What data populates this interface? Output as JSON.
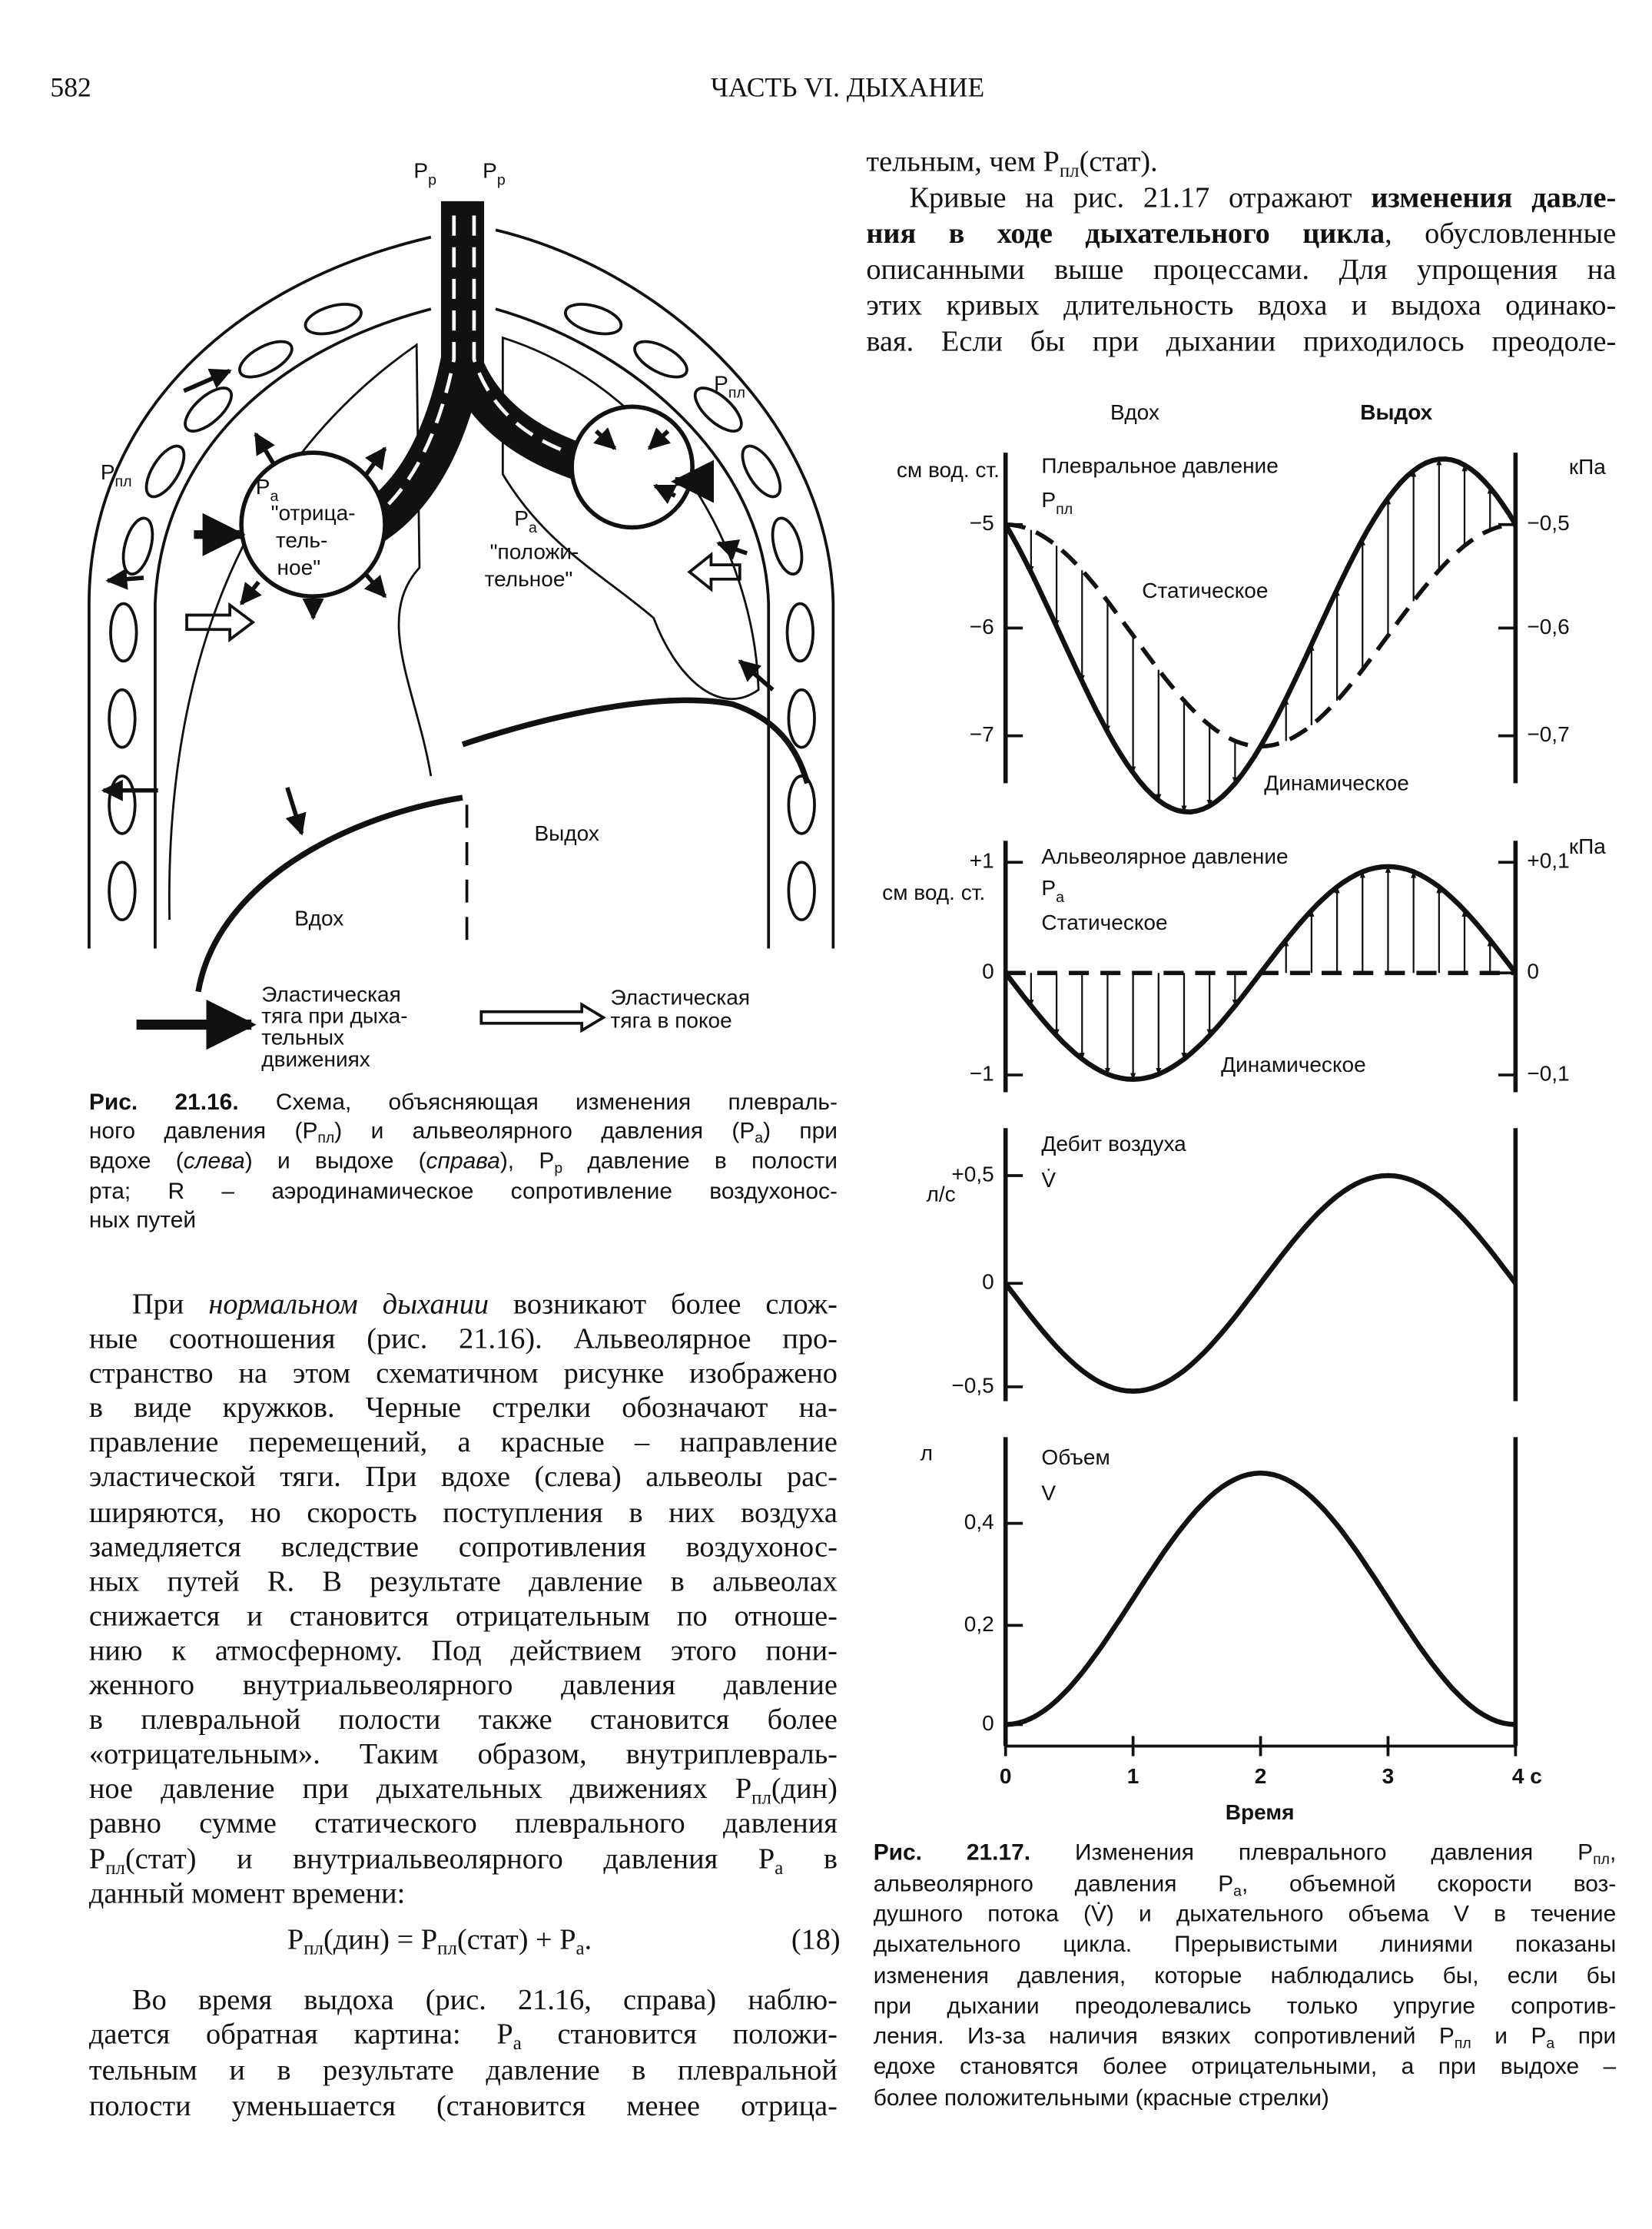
{
  "header": {
    "page_number": "582",
    "title": "ЧАСТЬ VI. ДЫХАНИЕ"
  },
  "right_text": {
    "lines": [
      [
        "тельным, чем P",
        {
          "sub": "пл"
        },
        "(стат)."
      ],
      [
        "Кривые на рис. 21.17 отражают ",
        {
          "b": "изменения давле-"
        }
      ],
      [
        {
          "b": "ния в ходе дыхательного цикла"
        },
        ", обусловленные"
      ],
      "описанными выше процессами. Для упрощения на",
      "этих кривых длительность вдоха и выдоха одинако-",
      "вая. Если бы при дыхании приходилось преодоле-"
    ]
  },
  "figure_21_16": {
    "pressure_mouth_left": [
      "P",
      {
        "sub": "p"
      }
    ],
    "pressure_mouth_right": [
      "P",
      {
        "sub": "p"
      }
    ],
    "pleural_left": [
      "P",
      {
        "sub": "пл"
      }
    ],
    "pleural_right": [
      "P",
      {
        "sub": "пл"
      }
    ],
    "alveolar_left": [
      "P",
      {
        "sub": "a"
      }
    ],
    "alveolar_left_note": [
      "\"отрица-",
      "тель-",
      "ное\""
    ],
    "alveolar_right": [
      "P",
      {
        "sub": "a"
      }
    ],
    "alveolar_right_note": [
      "\"положи-",
      "тельное\""
    ],
    "expiration": "Выдох",
    "inspiration": "Вдох",
    "legend_active": [
      "Эластическая",
      "тяга при дыха-",
      "тельных",
      "движениях"
    ],
    "legend_rest": [
      "Эластическая",
      "тяга в покое"
    ],
    "caption": {
      "lines": [
        [
          {
            "b": "Рис. 21.16."
          },
          " Схема, объясняющая изменения плевраль-"
        ],
        [
          "ного давления (P",
          {
            "sub": "пл"
          },
          ") и альвеолярного давления (P",
          {
            "sub": "a"
          },
          ") при"
        ],
        [
          "вдохе (",
          {
            "i": "слева"
          },
          ") и выдохе (",
          {
            "i": "справа"
          },
          "), P",
          {
            "sub": "p"
          },
          " давление в полости"
        ],
        "рта; R – аэродинамическое сопротивление воздухонос-",
        "ных путей"
      ]
    }
  },
  "body": {
    "paragraph_1": {
      "lines": [
        [
          "При ",
          {
            "i": "нормальном дыхании"
          },
          " возникают более слож-"
        ],
        "ные соотношения (рис. 21.16). Альвеолярное про-",
        "странство на этом схематичном рисунке изображено",
        "в виде кружков. Черные стрелки обозначают на-",
        "правление перемещений, а красные – направление",
        "эластической тяги. При вдохе (слева) альвеолы рас-",
        "ширяются, но скорость поступления в них воздуха",
        "замедляется вследствие сопротивления воздухонос-",
        "ных путей R. В результате давление в альвеолах",
        "снижается и становится отрицательным по отноше-",
        "нию к атмосферному. Под действием этого пони-",
        "женного внутриальвеолярного давления давление",
        "в плевральной полости также становится более",
        "«отрицательным». Таким образом, внутриплевраль-",
        [
          "ное давление при дыхательных движениях P",
          {
            "sub": "пл"
          },
          "(дин)"
        ],
        "равно сумме статического плеврального давления",
        [
          "P",
          {
            "sub": "пл"
          },
          "(стат) и внутриальвеолярного давления P",
          {
            "sub": "a"
          },
          " в"
        ],
        "данный момент времени:"
      ]
    },
    "equation": {
      "formula": [
        "P",
        {
          "sub": "пл"
        },
        "(дин) = P",
        {
          "sub": "пл"
        },
        "(стат) + P",
        {
          "sub": "a"
        },
        "."
      ],
      "number": "(18)"
    },
    "paragraph_2": {
      "lines": [
        "Во время выдоха (рис. 21.16, справа) наблю-",
        [
          "дается обратная картина: P",
          {
            "sub": "a"
          },
          " становится положи-"
        ],
        "тельным и в результате давление в плевральной",
        "полости уменьшается (становится менее отрица-"
      ]
    }
  },
  "figure_21_17": {
    "phase_inspiration": "Вдох",
    "phase_expiration": "Выдох",
    "panels": [
      {
        "title": "Плевральное давление",
        "symbol": [
          "P",
          {
            "sub": "пл"
          }
        ],
        "left_unit": "см вод. ст.",
        "right_unit": "кПа",
        "left_ticks": [
          "−5",
          "−6",
          "−7"
        ],
        "right_ticks": [
          "−0,5",
          "−0,6",
          "−0,7"
        ],
        "static_label": "Статическое",
        "dynamic_label": "Динамическое"
      },
      {
        "title": "Альвеолярное давление",
        "symbol": [
          "P",
          {
            "sub": "a"
          }
        ],
        "left_unit": "см вод. ст.",
        "right_unit": "кПа",
        "left_ticks": [
          "+1",
          "0",
          "−1"
        ],
        "right_ticks": [
          "+0,1",
          "0",
          "−0,1"
        ],
        "static_label": "Статическое",
        "dynamic_label": "Динамическое"
      },
      {
        "title": "Дебит воздуха",
        "symbol": "V̇",
        "left_unit": "л/с",
        "left_ticks": [
          "+0,5",
          "0",
          "−0,5"
        ]
      },
      {
        "title": "Объем",
        "symbol": "V",
        "left_unit": "л",
        "left_ticks": [
          "0,4",
          "0,2",
          "0"
        ]
      }
    ],
    "x_ticks": [
      "0",
      "1",
      "2",
      "3",
      "4 с"
    ],
    "x_label": "Время",
    "caption": {
      "lines": [
        [
          {
            "b": "Рис. 21.17."
          },
          " Изменения плеврального давления P",
          {
            "sub": "пл"
          },
          ","
        ],
        [
          "альвеолярного давления P",
          {
            "sub": "a"
          },
          ", объемной скорости воз-"
        ],
        "душного потока (V̇) и дыхательного объема V в течение",
        "дыхательного цикла. Прерывистыми линиями показаны",
        "изменения давления, которые наблюдались бы, если бы",
        "при дыхании преодолевались только упругие сопротив-",
        [
          "ления. Из-за наличия вязких сопротивлений P",
          {
            "sub": "пл"
          },
          " и P",
          {
            "sub": "a"
          },
          " при"
        ],
        "едохе становятся более отрицательными, а при выдохе –",
        "более положительными (красные стрелки)"
      ]
    }
  }
}
